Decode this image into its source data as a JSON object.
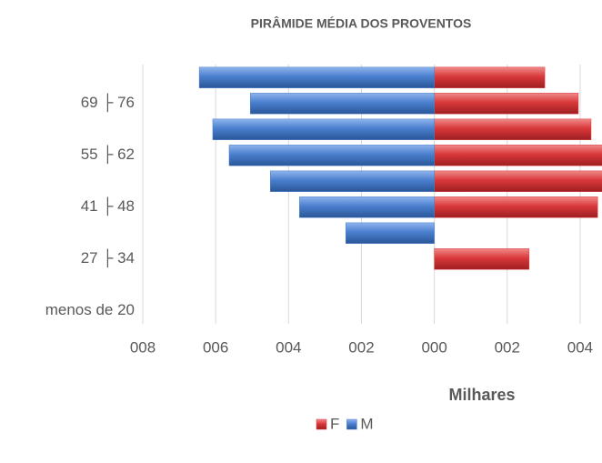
{
  "chart_data": {
    "type": "bar",
    "orientation": "horizontal",
    "title": "PIRÂMIDE MÉDIA DOS PROVENTOS",
    "x_label": "Milhares",
    "categories": [
      "menos de 20",
      null,
      "27 ├ 34",
      null,
      "41 ├ 48",
      null,
      "55 ├ 62",
      null,
      "69 ├ 76",
      null
    ],
    "series": [
      {
        "name": "F",
        "color": "#d9383a",
        "values": [
          0,
          0,
          2.6,
          0,
          4.48,
          4.8,
          4.8,
          4.3,
          3.95,
          3.03
        ]
      },
      {
        "name": "M",
        "color": "#4a7fcf",
        "values": [
          0,
          0,
          0,
          -2.43,
          -3.7,
          -4.5,
          -5.63,
          -6.08,
          -5.05,
          -6.45
        ]
      }
    ],
    "xlim": [
      -8,
      4.6
    ],
    "xticks": [
      {
        "value": -8,
        "label": "008"
      },
      {
        "value": -6,
        "label": "006"
      },
      {
        "value": -4,
        "label": "004"
      },
      {
        "value": -2,
        "label": "002"
      },
      {
        "value": 0,
        "label": "000"
      },
      {
        "value": 2,
        "label": "002"
      },
      {
        "value": 4,
        "label": "004"
      }
    ],
    "grid": true
  }
}
